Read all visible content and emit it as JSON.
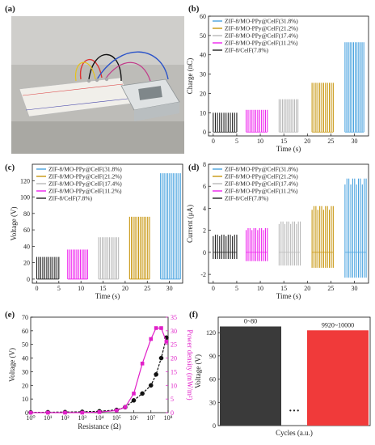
{
  "panel_labels": {
    "a": "(a)",
    "b": "(b)",
    "c": "(c)",
    "d": "(d)",
    "e": "(e)",
    "f": "(f)"
  },
  "legend": {
    "series": [
      {
        "name": "ZIF-8/MO-PPy@CelF(31.8%)",
        "color": "#4aa3df"
      },
      {
        "name": "ZIF-8/MO-PPy@CelF(21.2%)",
        "color": "#c8960f"
      },
      {
        "name": "ZIF-8/MO-PPy@CelF(17.4%)",
        "color": "#b8b8b8"
      },
      {
        "name": "ZIF-8/MO-PPy@CelF(11.2%)",
        "color": "#ee22ee"
      },
      {
        "name": "ZIF-8/CelF(7.8%)",
        "color": "#222222"
      }
    ]
  },
  "photo": {
    "description_icon": "photo-setup-icon"
  },
  "chart_data": [
    {
      "id": "b",
      "type": "bar",
      "ylabel": "Charge (nC)",
      "xlabel": "Time (s)",
      "xlim": [
        -1,
        33
      ],
      "ylim": [
        -2,
        60
      ],
      "xticks": [
        "0",
        "5",
        "10",
        "15",
        "20",
        "25",
        "30"
      ],
      "yticks": [
        "0",
        "10",
        "20",
        "30",
        "40",
        "50",
        "60"
      ],
      "series_order_left_to_right": [
        "ZIF-8/CelF(7.8%)",
        "ZIF-8/MO-PPy@CelF(11.2%)",
        "ZIF-8/MO-PPy@CelF(17.4%)",
        "ZIF-8/MO-PPy@CelF(21.2%)",
        "ZIF-8/MO-PPy@CelF(31.8%)"
      ],
      "x_ranges": [
        [
          0,
          5
        ],
        [
          7,
          11.5
        ],
        [
          14,
          18
        ],
        [
          21,
          25.5
        ],
        [
          28,
          32
        ]
      ],
      "peak_values": [
        10,
        11.5,
        17,
        25.5,
        46.5
      ]
    },
    {
      "id": "c",
      "type": "bar",
      "ylabel": "Voltage (V)",
      "xlabel": "Time (s)",
      "xlim": [
        -1,
        33
      ],
      "ylim": [
        -5,
        140
      ],
      "xticks": [
        "0",
        "5",
        "10",
        "15",
        "20",
        "25",
        "30"
      ],
      "yticks": [
        "0",
        "20",
        "40",
        "60",
        "80",
        "100",
        "120"
      ],
      "series_order_left_to_right": [
        "ZIF-8/CelF(7.8%)",
        "ZIF-8/MO-PPy@CelF(11.2%)",
        "ZIF-8/MO-PPy@CelF(17.4%)",
        "ZIF-8/MO-PPy@CelF(21.2%)",
        "ZIF-8/MO-PPy@CelF(31.8%)"
      ],
      "x_ranges": [
        [
          0,
          5
        ],
        [
          7,
          11.5
        ],
        [
          14,
          18.5
        ],
        [
          21,
          25.5
        ],
        [
          28,
          32.5
        ]
      ],
      "peak_values": [
        27,
        36,
        51,
        76,
        129
      ]
    },
    {
      "id": "d",
      "type": "bar",
      "ylabel": "Current (μA)",
      "xlabel": "Time (s)",
      "xlim": [
        -1,
        33
      ],
      "ylim": [
        -2.8,
        8
      ],
      "xticks": [
        "0",
        "5",
        "10",
        "15",
        "20",
        "25",
        "30"
      ],
      "yticks": [
        "-2",
        "0",
        "2",
        "4",
        "6",
        "8"
      ],
      "series_order_left_to_right": [
        "ZIF-8/CelF(7.8%)",
        "ZIF-8/MO-PPy@CelF(11.2%)",
        "ZIF-8/MO-PPy@CelF(17.4%)",
        "ZIF-8/MO-PPy@CelF(21.2%)",
        "ZIF-8/MO-PPy@CelF(31.8%)"
      ],
      "x_ranges": [
        [
          0,
          5
        ],
        [
          7,
          11.5
        ],
        [
          14,
          18.5
        ],
        [
          21,
          25.5
        ],
        [
          28,
          32.5
        ]
      ],
      "peak_values": [
        1.6,
        2.2,
        2.8,
        4.2,
        6.7
      ],
      "trough_values": [
        -0.6,
        -0.8,
        -1.2,
        -1.4,
        -2.3
      ]
    },
    {
      "id": "e",
      "type": "line",
      "xlabel": "Resistance (Ω)",
      "ylabel": "Voltage (V)",
      "y2label": "Power density (mW/m²)",
      "xscale": "log",
      "xlim_exp": [
        0,
        8
      ],
      "ylim": [
        0,
        70
      ],
      "y2lim": [
        0,
        35
      ],
      "xticks": [
        "10⁰",
        "10¹",
        "10²",
        "10³",
        "10⁴",
        "10⁵",
        "10⁶",
        "10⁷",
        "10⁸"
      ],
      "yticks": [
        "0",
        "10",
        "20",
        "30",
        "40",
        "50",
        "60",
        "70"
      ],
      "y2ticks": [
        "0",
        "5",
        "10",
        "15",
        "20",
        "25",
        "30",
        "35"
      ],
      "series": [
        {
          "name": "Voltage",
          "axis": "left",
          "color": "#111111",
          "marker": "sphere",
          "x_exp": [
            0,
            1,
            2,
            3,
            4,
            5,
            5.5,
            6,
            6.5,
            7,
            7.3,
            7.6,
            7.9
          ],
          "values": [
            0.2,
            0.3,
            0.4,
            0.6,
            1.0,
            2.0,
            4,
            9,
            14,
            20,
            28,
            40,
            55
          ]
        },
        {
          "name": "Power density",
          "axis": "right",
          "color": "#e020c8",
          "marker": "square",
          "x_exp": [
            0,
            1,
            2,
            3,
            4,
            5,
            5.5,
            6,
            6.5,
            7,
            7.3,
            7.6,
            7.9
          ],
          "values": [
            0,
            0,
            0,
            0,
            0.2,
            0.8,
            2,
            7,
            18,
            27,
            31,
            31,
            26
          ]
        }
      ]
    },
    {
      "id": "f",
      "type": "bar",
      "ylabel": "Voltage (V)",
      "xlabel": "Cycles (a.u.)",
      "ylim": [
        0,
        140
      ],
      "yticks": [
        "0",
        "30",
        "60",
        "90",
        "120"
      ],
      "categories": [
        "0~80",
        "9920~10000"
      ],
      "values": [
        128,
        123
      ],
      "colors": [
        "#3a3a3a",
        "#f03a3a"
      ],
      "break_mark": "···"
    }
  ]
}
